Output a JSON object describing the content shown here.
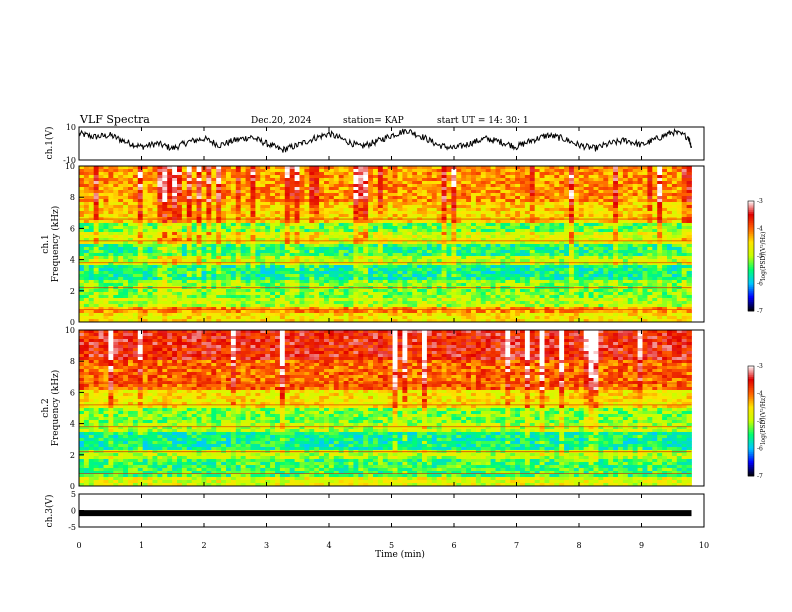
{
  "header": {
    "title": "VLF Spectra",
    "date": "Dec.20, 2024",
    "station": "station= KAP",
    "start": "start  UT =   14: 30: 1"
  },
  "chart_data": [
    {
      "type": "line",
      "panel": "ch1-waveform",
      "ylabel": "ch.1(V)",
      "ylim": [
        -10,
        10
      ],
      "yticks": [
        "10",
        "-10"
      ],
      "x": [
        0,
        0.25,
        0.5,
        0.75,
        1,
        1.25,
        1.5,
        1.75,
        2,
        2.25,
        2.5,
        2.75,
        3,
        3.25,
        3.5,
        3.75,
        4,
        4.25,
        4.5,
        4.75,
        5,
        5.25,
        5.5,
        5.75,
        6,
        6.25,
        6.5,
        6.75,
        7,
        7.25,
        7.5,
        7.75,
        8,
        8.25,
        8.5,
        8.75,
        9,
        9.25,
        9.5,
        9.75,
        9.8
      ],
      "values": [
        6,
        4,
        5,
        1,
        -2,
        0,
        -3,
        1,
        3,
        -1,
        2,
        4,
        0,
        -4,
        -1,
        3,
        6,
        2,
        -2,
        1,
        5,
        8,
        4,
        -1,
        -3,
        0,
        3,
        1,
        -2,
        2,
        5,
        3,
        -1,
        -3,
        0,
        2,
        -1,
        3,
        7,
        4,
        -2
      ]
    },
    {
      "type": "heatmap",
      "panel": "ch1-spectrogram",
      "ylabel": "Frequency (kHz)",
      "channel_label": "ch.1",
      "ylim": [
        0,
        10
      ],
      "yticks": [
        "0",
        "2",
        "4",
        "6",
        "8",
        "10"
      ],
      "colorbar": {
        "label": "log(PSD)(V²/Hz)",
        "range": [
          -7,
          -3
        ],
        "ticks": [
          "-3",
          "-4",
          "-5",
          "-6",
          "-7"
        ]
      },
      "bands_khz": [
        [
          0,
          0.6,
          -4.6
        ],
        [
          0.6,
          1.0,
          -4.2
        ],
        [
          1.0,
          1.6,
          -5.0
        ],
        [
          1.6,
          2.6,
          -5.2
        ],
        [
          2.6,
          3.6,
          -5.6
        ],
        [
          3.6,
          4.2,
          -5.0
        ],
        [
          4.2,
          5.0,
          -5.5
        ],
        [
          5.0,
          5.8,
          -4.8
        ],
        [
          5.8,
          6.4,
          -5.3
        ],
        [
          6.4,
          7.6,
          -4.5
        ],
        [
          7.6,
          10,
          -4.2
        ]
      ]
    },
    {
      "type": "heatmap",
      "panel": "ch2-spectrogram",
      "ylabel": "Frequency (kHz)",
      "channel_label": "ch.2",
      "ylim": [
        0,
        10
      ],
      "yticks": [
        "0",
        "2",
        "4",
        "6",
        "8",
        "10"
      ],
      "colorbar": {
        "label": "log(PSD)(V²/Hz)",
        "range": [
          -7,
          -3
        ],
        "ticks": [
          "-3",
          "-4",
          "-5",
          "-6",
          "-7"
        ]
      },
      "bands_khz": [
        [
          0,
          0.5,
          -4.8
        ],
        [
          0.5,
          1.8,
          -5.4
        ],
        [
          1.8,
          2.4,
          -5.0
        ],
        [
          2.4,
          3.4,
          -5.6
        ],
        [
          3.4,
          4.0,
          -5.0
        ],
        [
          4.0,
          5.0,
          -5.2
        ],
        [
          5.0,
          6.2,
          -4.6
        ],
        [
          6.2,
          8.0,
          -4.0
        ],
        [
          8.0,
          10,
          -3.6
        ]
      ]
    },
    {
      "type": "line",
      "panel": "ch3-waveform",
      "ylabel": "ch.3(V)",
      "ylim": [
        -5,
        5
      ],
      "yticks": [
        "5",
        "0",
        "-5"
      ],
      "x": [
        0,
        9.8
      ],
      "values": [
        -0.8,
        -0.8
      ]
    }
  ],
  "xaxis": {
    "label": "Time (min)",
    "range": [
      0,
      10
    ],
    "ticks": [
      "0",
      "1",
      "2",
      "3",
      "4",
      "5",
      "6",
      "7",
      "8",
      "9",
      "10"
    ]
  },
  "colors": {
    "colormap": [
      "#000000",
      "#0000ff",
      "#00c8ff",
      "#00ff70",
      "#c8ff00",
      "#ffe400",
      "#ff6000",
      "#e00000",
      "#ffffff"
    ]
  }
}
